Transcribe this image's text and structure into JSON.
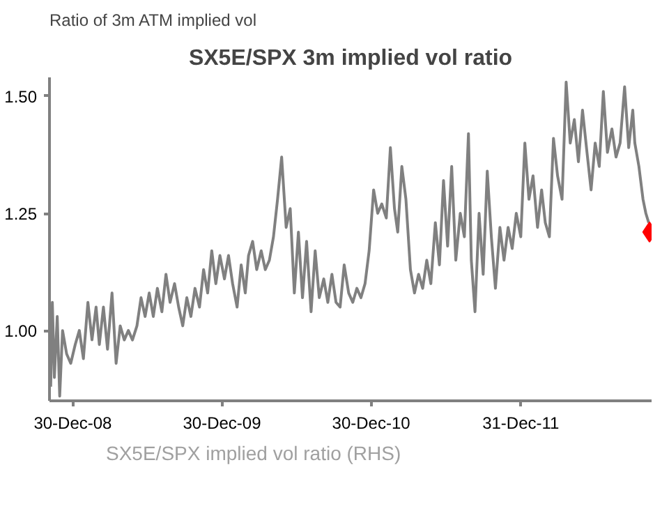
{
  "chart_data": {
    "type": "line",
    "title": "SX5E/SPX 3m implied vol ratio",
    "ylabel": "Ratio of 3m ATM implied vol",
    "xlim": [
      "2008-11-03",
      "2012-11-15"
    ],
    "ylim": [
      0.85,
      1.54
    ],
    "xticks": [
      {
        "value": "2008-12-30",
        "label": "30-Dec-08"
      },
      {
        "value": "2009-12-30",
        "label": "30-Dec-09"
      },
      {
        "value": "2010-12-30",
        "label": "30-Dec-10"
      },
      {
        "value": "2011-12-31",
        "label": "31-Dec-11"
      }
    ],
    "yticks": [
      {
        "value": 1.0,
        "label": "1.00"
      },
      {
        "value": 1.25,
        "label": "1.25"
      },
      {
        "value": 1.5,
        "label": "1.50"
      }
    ],
    "grid": false,
    "legend": "bottom",
    "series": [
      {
        "name": "SX5E/SPX implied vol ratio (RHS)",
        "color": "#808080",
        "line_style": "solid",
        "x": [
          "2008-11-06",
          "2008-11-10",
          "2008-11-15",
          "2008-11-22",
          "2008-11-28",
          "2008-12-05",
          "2008-12-15",
          "2008-12-25",
          "2009-01-05",
          "2009-01-15",
          "2009-01-25",
          "2009-02-05",
          "2009-02-15",
          "2009-02-25",
          "2009-03-05",
          "2009-03-15",
          "2009-03-25",
          "2009-04-05",
          "2009-04-15",
          "2009-04-25",
          "2009-05-05",
          "2009-05-15",
          "2009-05-25",
          "2009-06-05",
          "2009-06-15",
          "2009-06-25",
          "2009-07-05",
          "2009-07-15",
          "2009-07-25",
          "2009-08-05",
          "2009-08-15",
          "2009-08-25",
          "2009-09-05",
          "2009-09-15",
          "2009-09-25",
          "2009-10-05",
          "2009-10-15",
          "2009-10-25",
          "2009-11-05",
          "2009-11-15",
          "2009-11-25",
          "2009-12-05",
          "2009-12-15",
          "2009-12-25",
          "2010-01-05",
          "2010-01-15",
          "2010-01-25",
          "2010-02-05",
          "2010-02-15",
          "2010-02-25",
          "2010-03-05",
          "2010-03-15",
          "2010-03-25",
          "2010-04-05",
          "2010-04-15",
          "2010-04-25",
          "2010-05-05",
          "2010-05-15",
          "2010-05-25",
          "2010-06-05",
          "2010-06-15",
          "2010-06-25",
          "2010-07-05",
          "2010-07-15",
          "2010-07-25",
          "2010-08-05",
          "2010-08-15",
          "2010-08-25",
          "2010-09-05",
          "2010-09-15",
          "2010-09-25",
          "2010-10-05",
          "2010-10-15",
          "2010-10-25",
          "2010-11-05",
          "2010-11-15",
          "2010-11-25",
          "2010-12-05",
          "2010-12-15",
          "2010-12-25",
          "2011-01-05",
          "2011-01-15",
          "2011-01-25",
          "2011-02-05",
          "2011-02-15",
          "2011-02-25",
          "2011-03-05",
          "2011-03-15",
          "2011-03-25",
          "2011-04-05",
          "2011-04-15",
          "2011-04-25",
          "2011-05-05",
          "2011-05-15",
          "2011-05-25",
          "2011-06-05",
          "2011-06-15",
          "2011-06-25",
          "2011-07-05",
          "2011-07-15",
          "2011-07-25",
          "2011-08-05",
          "2011-08-15",
          "2011-08-25",
          "2011-09-01",
          "2011-09-10",
          "2011-09-20",
          "2011-09-30",
          "2011-10-10",
          "2011-10-20",
          "2011-10-30",
          "2011-11-10",
          "2011-11-20",
          "2011-11-30",
          "2011-12-10",
          "2011-12-20",
          "2011-12-31",
          "2012-01-10",
          "2012-01-20",
          "2012-01-30",
          "2012-02-10",
          "2012-02-20",
          "2012-02-29",
          "2012-03-10",
          "2012-03-20",
          "2012-03-30",
          "2012-04-10",
          "2012-04-20",
          "2012-04-30",
          "2012-05-10",
          "2012-05-20",
          "2012-05-30",
          "2012-06-10",
          "2012-06-20",
          "2012-06-30",
          "2012-07-10",
          "2012-07-20",
          "2012-07-30",
          "2012-08-10",
          "2012-08-20",
          "2012-08-30",
          "2012-09-10",
          "2012-09-20",
          "2012-09-30",
          "2012-10-05",
          "2012-10-15",
          "2012-10-25",
          "2012-11-01",
          "2012-11-08"
        ],
        "values": [
          0.88,
          1.06,
          0.9,
          1.03,
          0.86,
          1.0,
          0.95,
          0.93,
          0.97,
          1.0,
          0.94,
          1.06,
          0.98,
          1.05,
          0.97,
          1.05,
          0.96,
          1.08,
          0.93,
          1.01,
          0.98,
          1.0,
          0.98,
          1.01,
          1.07,
          1.03,
          1.08,
          1.03,
          1.09,
          1.04,
          1.12,
          1.06,
          1.1,
          1.05,
          1.01,
          1.07,
          1.03,
          1.09,
          1.05,
          1.13,
          1.08,
          1.17,
          1.1,
          1.16,
          1.11,
          1.16,
          1.1,
          1.05,
          1.14,
          1.08,
          1.16,
          1.19,
          1.13,
          1.17,
          1.13,
          1.15,
          1.2,
          1.28,
          1.37,
          1.22,
          1.26,
          1.08,
          1.21,
          1.07,
          1.19,
          1.04,
          1.17,
          1.07,
          1.11,
          1.06,
          1.12,
          1.06,
          1.05,
          1.14,
          1.08,
          1.06,
          1.09,
          1.07,
          1.1,
          1.17,
          1.3,
          1.25,
          1.27,
          1.24,
          1.39,
          1.26,
          1.21,
          1.35,
          1.28,
          1.13,
          1.08,
          1.12,
          1.09,
          1.15,
          1.1,
          1.23,
          1.14,
          1.32,
          1.18,
          1.35,
          1.15,
          1.25,
          1.2,
          1.42,
          1.15,
          1.04,
          1.25,
          1.12,
          1.34,
          1.2,
          1.09,
          1.22,
          1.15,
          1.22,
          1.175,
          1.25,
          1.2,
          1.4,
          1.28,
          1.33,
          1.22,
          1.3,
          1.23,
          1.2,
          1.41,
          1.33,
          1.28,
          1.53,
          1.4,
          1.45,
          1.36,
          1.47,
          1.38,
          1.3,
          1.4,
          1.35,
          1.51,
          1.38,
          1.43,
          1.37,
          1.4,
          1.52,
          1.39,
          1.47,
          1.4,
          1.35,
          1.28,
          1.25,
          1.23
        ]
      },
      {
        "type": "scatter",
        "color": "#ff0000",
        "marker": "diamond",
        "x": [
          "2012-11-10"
        ],
        "values": [
          1.21
        ]
      }
    ]
  }
}
